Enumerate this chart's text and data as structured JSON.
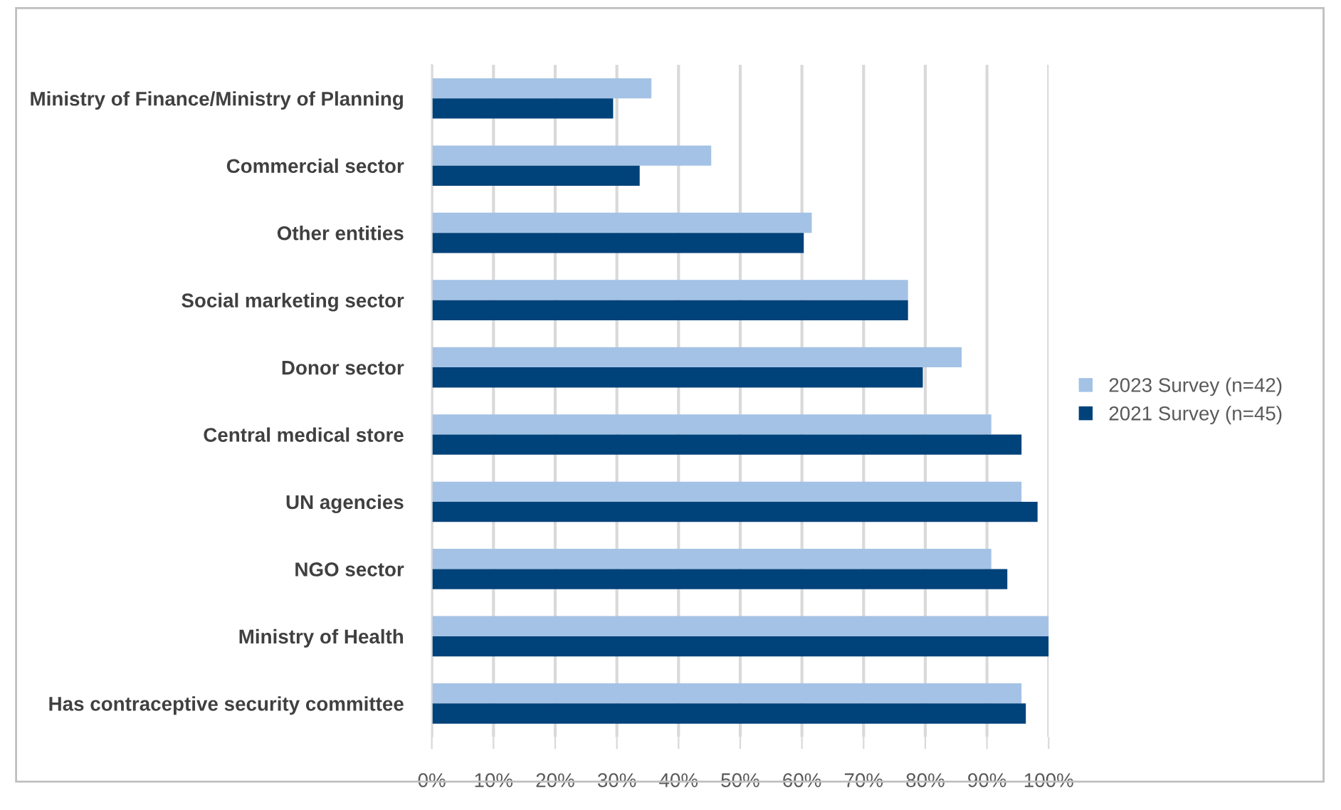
{
  "chart_data": {
    "type": "bar",
    "orientation": "horizontal",
    "categories": [
      "Ministry of Finance/Ministry of Planning",
      "Commercial sector",
      "Other entities",
      "Social marketing sector",
      "Donor sector",
      "Central medical store",
      "UN agencies",
      "NGO sector",
      "Ministry of Health",
      "Has contraceptive security committee"
    ],
    "series": [
      {
        "name": "2023 Survey (n=42)",
        "color": "#a4c2e5",
        "values": [
          35.6,
          45.3,
          61.6,
          77.2,
          85.9,
          90.7,
          95.6,
          90.7,
          100,
          95.6
        ]
      },
      {
        "name": "2021 Survey (n=45)",
        "color": "#00427a",
        "values": [
          29.4,
          33.7,
          60.3,
          77.2,
          79.6,
          95.6,
          98.2,
          93.3,
          100,
          96.3
        ]
      }
    ],
    "xlim": [
      0,
      100
    ],
    "xticks": [
      {
        "value": 0,
        "label": "0%"
      },
      {
        "value": 10,
        "label": "10%"
      },
      {
        "value": 20,
        "label": "20%"
      },
      {
        "value": 30,
        "label": "30%"
      },
      {
        "value": 40,
        "label": "40%"
      },
      {
        "value": 50,
        "label": "50%"
      },
      {
        "value": 60,
        "label": "60%"
      },
      {
        "value": 70,
        "label": "70%"
      },
      {
        "value": 80,
        "label": "80%"
      },
      {
        "value": 90,
        "label": "90%"
      },
      {
        "value": 100,
        "label": "100%"
      }
    ],
    "grid": "x",
    "legend": "right"
  }
}
